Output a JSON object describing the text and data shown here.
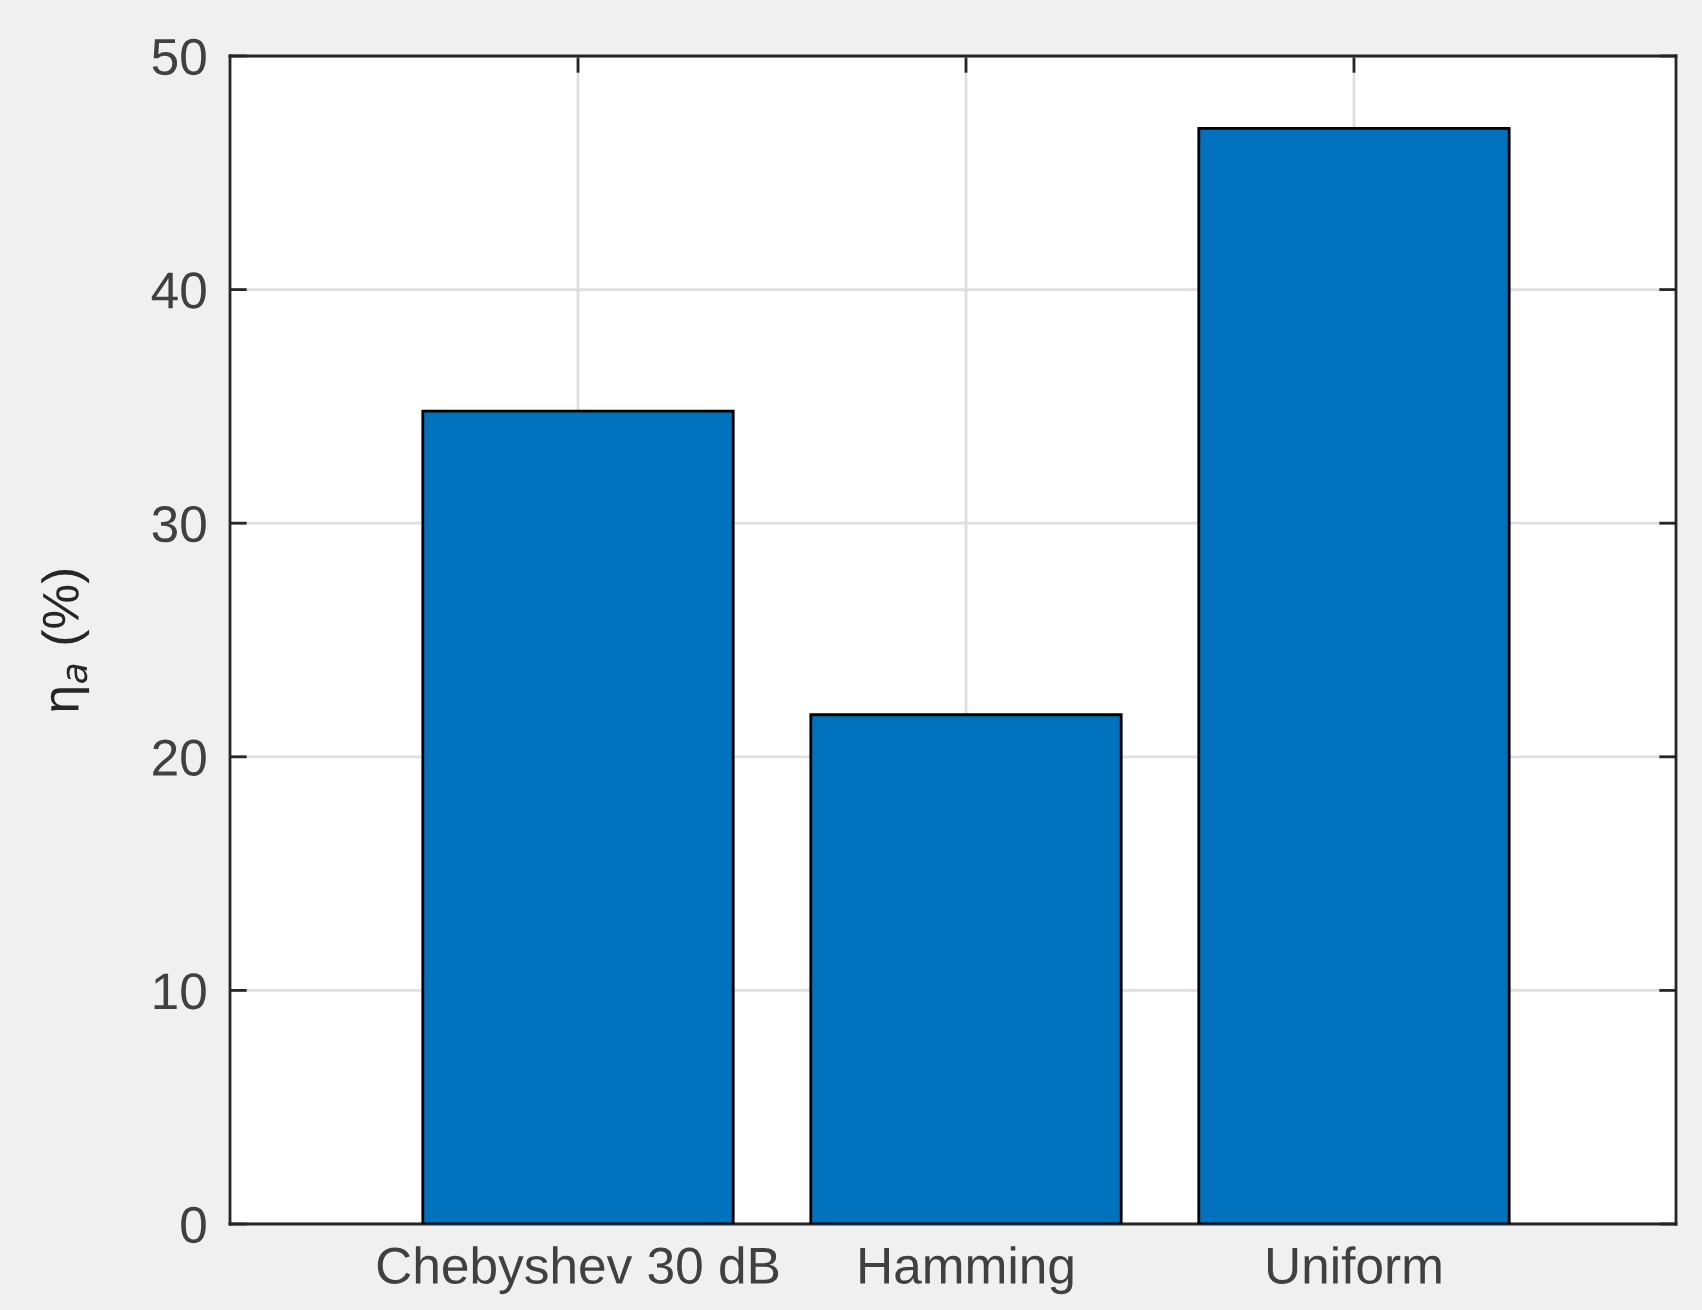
{
  "chart_data": {
    "type": "bar",
    "ylabel": "η$_{a}$ (%)",
    "categories": [
      "Chebyshev 30 dB",
      "Hamming",
      "Uniform"
    ],
    "values": [
      34.8,
      21.8,
      46.9
    ],
    "color": "#0072bd",
    "ylim": [
      0,
      50
    ],
    "yticks": [
      0,
      10,
      20,
      30,
      40,
      50
    ],
    "grid": true
  }
}
